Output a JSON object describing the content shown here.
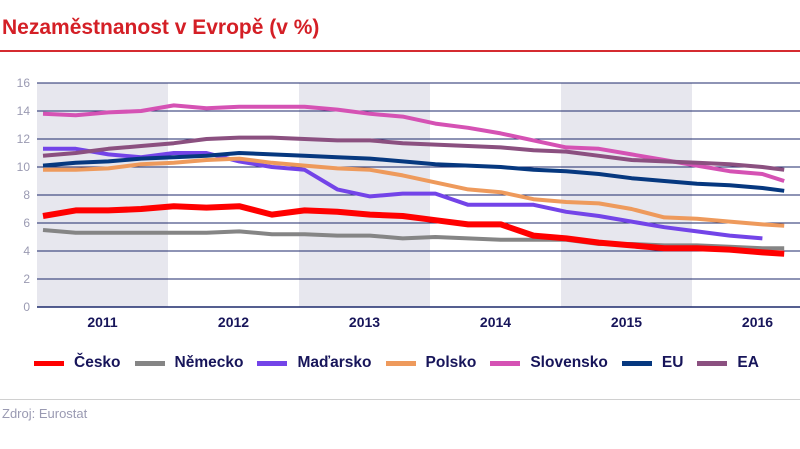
{
  "chart_data": {
    "type": "line",
    "title": "Nezaměstnanost v Evropě (v %)",
    "xlabel": "",
    "ylabel": "",
    "ylim": [
      0,
      16
    ],
    "yticks": [
      0,
      2,
      4,
      6,
      8,
      10,
      12,
      14,
      16
    ],
    "xtick_labels": [
      "2011",
      "2012",
      "2013",
      "2014",
      "2015",
      "2016"
    ],
    "shaded_years": [
      "2011",
      "2013",
      "2015"
    ],
    "grid": true,
    "legend_position": "bottom",
    "x": [
      "2011-01",
      "2011-04",
      "2011-07",
      "2011-10",
      "2012-01",
      "2012-04",
      "2012-07",
      "2012-10",
      "2013-01",
      "2013-04",
      "2013-07",
      "2013-10",
      "2014-01",
      "2014-04",
      "2014-07",
      "2014-10",
      "2015-01",
      "2015-04",
      "2015-07",
      "2015-10",
      "2016-01",
      "2016-04",
      "2016-07",
      "2016-09"
    ],
    "series": [
      {
        "name": "Česko",
        "color": "#ff0000",
        "values": [
          6.5,
          6.9,
          6.9,
          7.0,
          7.2,
          7.1,
          7.2,
          6.6,
          6.9,
          6.8,
          6.6,
          6.5,
          6.2,
          5.9,
          5.9,
          5.1,
          4.9,
          4.6,
          4.4,
          4.2,
          4.2,
          4.1,
          3.9,
          3.8
        ]
      },
      {
        "name": "Německo",
        "color": "#858585",
        "values": [
          5.5,
          5.3,
          5.3,
          5.3,
          5.3,
          5.3,
          5.4,
          5.2,
          5.2,
          5.1,
          5.1,
          4.9,
          5.0,
          4.9,
          4.8,
          4.8,
          4.8,
          4.5,
          4.5,
          4.4,
          4.4,
          4.3,
          4.2,
          4.2
        ]
      },
      {
        "name": "Maďarsko",
        "color": "#7344e8",
        "values": [
          11.3,
          11.3,
          10.9,
          10.7,
          11.0,
          11.0,
          10.4,
          10.0,
          9.8,
          8.4,
          7.9,
          8.1,
          8.1,
          7.3,
          7.3,
          7.3,
          6.8,
          6.5,
          6.1,
          5.7,
          5.4,
          5.1,
          4.9,
          null
        ]
      },
      {
        "name": "Polsko",
        "color": "#ee9a5c",
        "values": [
          9.8,
          9.8,
          9.9,
          10.2,
          10.3,
          10.5,
          10.6,
          10.3,
          10.1,
          9.9,
          9.8,
          9.4,
          8.9,
          8.4,
          8.2,
          7.7,
          7.5,
          7.4,
          7.0,
          6.4,
          6.3,
          6.1,
          5.9,
          5.8
        ]
      },
      {
        "name": "Slovensko",
        "color": "#d552b4",
        "values": [
          13.8,
          13.7,
          13.9,
          14.0,
          14.4,
          14.2,
          14.3,
          14.3,
          14.3,
          14.1,
          13.8,
          13.6,
          13.1,
          12.8,
          12.4,
          11.9,
          11.4,
          11.3,
          10.9,
          10.5,
          10.1,
          9.7,
          9.5,
          9.0
        ]
      },
      {
        "name": "EU",
        "color": "#06387f",
        "values": [
          10.1,
          10.3,
          10.4,
          10.6,
          10.7,
          10.8,
          11.0,
          10.9,
          10.8,
          10.7,
          10.6,
          10.4,
          10.2,
          10.1,
          10.0,
          9.8,
          9.7,
          9.5,
          9.2,
          9.0,
          8.8,
          8.7,
          8.5,
          8.3
        ]
      },
      {
        "name": "EA",
        "color": "#8b5080",
        "values": [
          10.8,
          11.0,
          11.3,
          11.5,
          11.7,
          12.0,
          12.1,
          12.1,
          12.0,
          11.9,
          11.9,
          11.7,
          11.6,
          11.5,
          11.4,
          11.2,
          11.1,
          10.8,
          10.5,
          10.4,
          10.3,
          10.2,
          10.0,
          9.8
        ]
      }
    ]
  },
  "source": "Zdroj: Eurostat"
}
